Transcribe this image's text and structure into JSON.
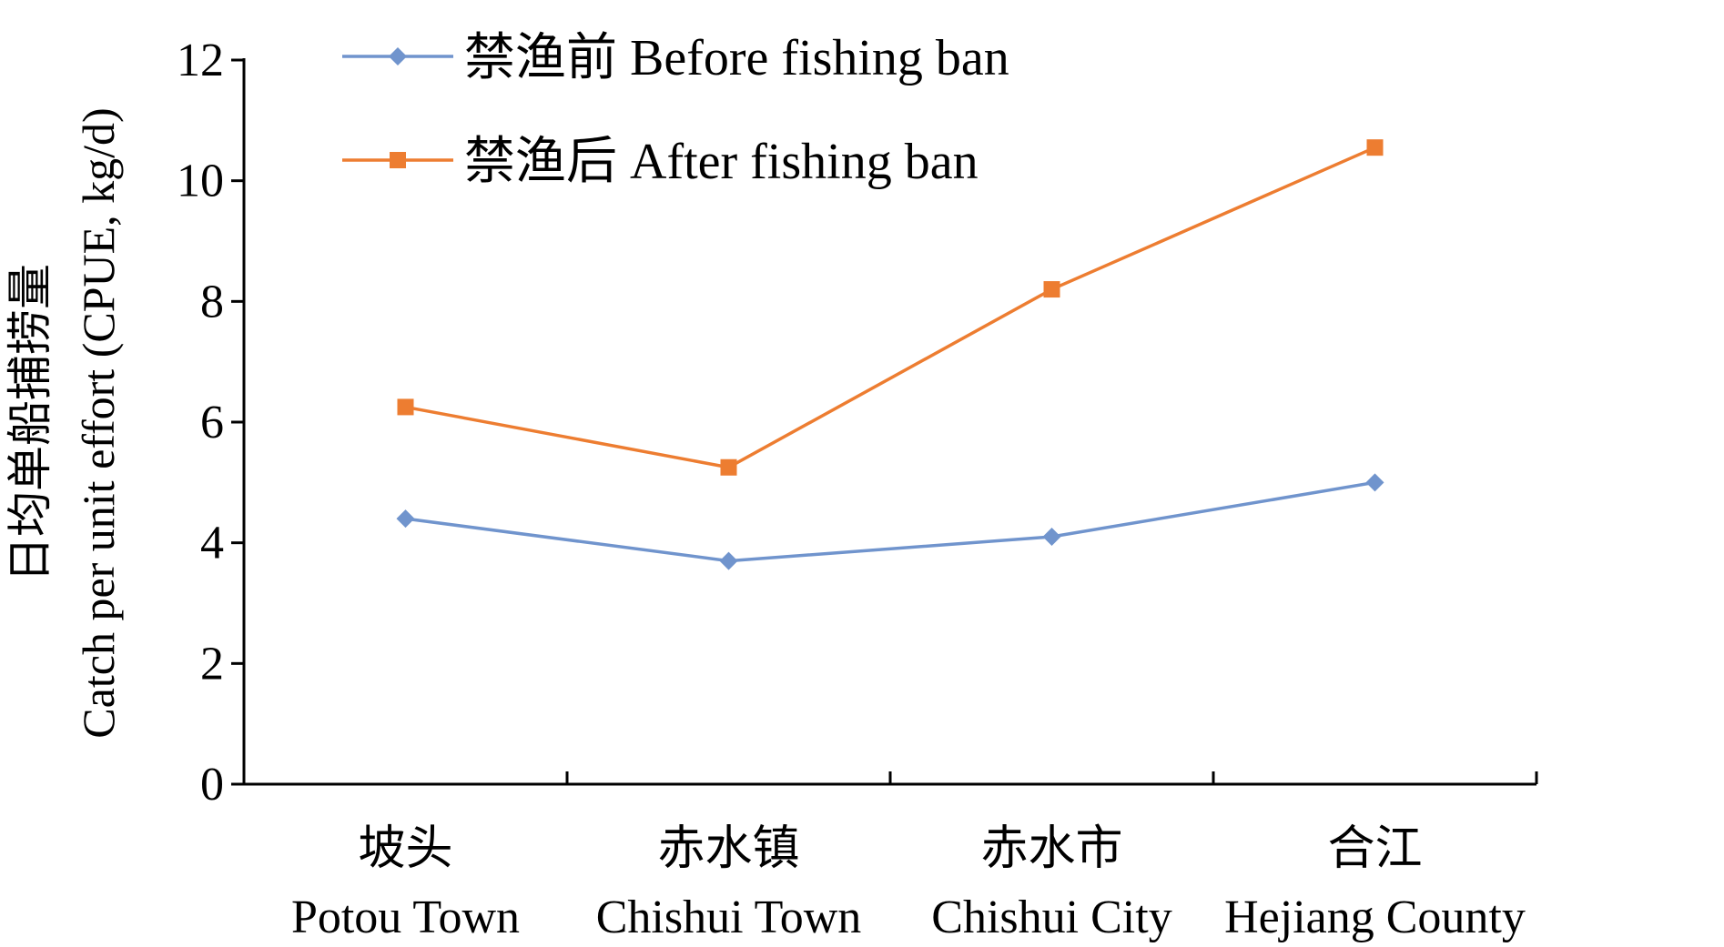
{
  "chart_data": {
    "type": "line",
    "ylabel_cn": "日均单船捕捞量",
    "ylabel_en": "Catch per unit effort (CPUE, kg/d)",
    "ylim": [
      0,
      12
    ],
    "yticks": [
      0,
      2,
      4,
      6,
      8,
      10,
      12
    ],
    "categories": [
      {
        "cn": "坡头",
        "en": "Potou Town"
      },
      {
        "cn": "赤水镇",
        "en": "Chishui Town"
      },
      {
        "cn": "赤水市",
        "en": "Chishui City"
      },
      {
        "cn": "合江",
        "en": "Hejiang County"
      }
    ],
    "series": [
      {
        "name": "禁渔前 Before fishing ban",
        "values": [
          4.4,
          3.7,
          4.1,
          5.0
        ],
        "color": "#7094cd",
        "marker": "diamond"
      },
      {
        "name": "禁渔后 After fishing ban",
        "values": [
          6.25,
          5.25,
          8.2,
          10.55
        ],
        "color": "#ed7d31",
        "marker": "square"
      }
    ],
    "grid": false,
    "legend_position": "top-left"
  }
}
